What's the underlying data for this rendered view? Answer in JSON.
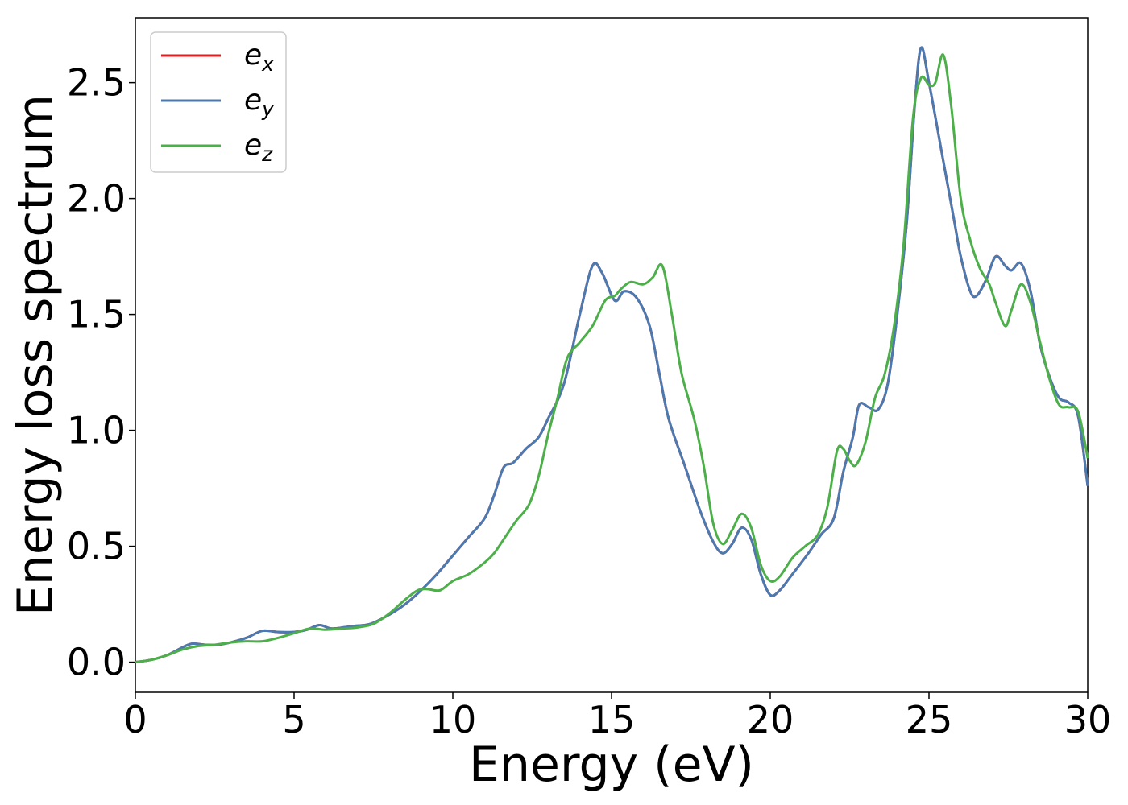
{
  "chart_data": {
    "type": "line",
    "title": "",
    "xlabel": "Energy (eV)",
    "ylabel": "Energy loss spectrum",
    "xlim": [
      0,
      30
    ],
    "ylim": [
      -0.13,
      2.78
    ],
    "xticks": [
      0,
      5,
      10,
      15,
      20,
      25,
      30
    ],
    "xtick_labels": [
      "0",
      "5",
      "10",
      "15",
      "20",
      "25",
      "30"
    ],
    "yticks": [
      0.0,
      0.5,
      1.0,
      1.5,
      2.0,
      2.5
    ],
    "ytick_labels": [
      "0.0",
      "0.5",
      "1.0",
      "1.5",
      "2.0",
      "2.5"
    ],
    "grid": false,
    "legend_position": "top-left",
    "series": [
      {
        "name": "e_x",
        "legend_base": "e",
        "legend_sub": "x",
        "color": "#e41a1c",
        "points": [
          [
            0,
            0
          ],
          [
            0.5,
            0.01
          ],
          [
            1.0,
            0.03
          ],
          [
            1.5,
            0.065
          ],
          [
            1.8,
            0.08
          ],
          [
            2.2,
            0.075
          ],
          [
            2.6,
            0.075
          ],
          [
            3.0,
            0.085
          ],
          [
            3.5,
            0.105
          ],
          [
            4.0,
            0.135
          ],
          [
            4.5,
            0.13
          ],
          [
            5.0,
            0.13
          ],
          [
            5.4,
            0.14
          ],
          [
            5.8,
            0.16
          ],
          [
            6.2,
            0.145
          ],
          [
            6.8,
            0.155
          ],
          [
            7.4,
            0.165
          ],
          [
            8.0,
            0.205
          ],
          [
            8.5,
            0.25
          ],
          [
            9.0,
            0.31
          ],
          [
            9.5,
            0.38
          ],
          [
            10.0,
            0.46
          ],
          [
            10.5,
            0.54
          ],
          [
            11.0,
            0.62
          ],
          [
            11.3,
            0.72
          ],
          [
            11.6,
            0.84
          ],
          [
            11.9,
            0.86
          ],
          [
            12.3,
            0.92
          ],
          [
            12.7,
            0.97
          ],
          [
            13.0,
            1.05
          ],
          [
            13.5,
            1.2
          ],
          [
            14.0,
            1.5
          ],
          [
            14.4,
            1.71
          ],
          [
            14.7,
            1.68
          ],
          [
            15.1,
            1.56
          ],
          [
            15.4,
            1.6
          ],
          [
            15.8,
            1.57
          ],
          [
            16.2,
            1.45
          ],
          [
            16.5,
            1.25
          ],
          [
            16.8,
            1.05
          ],
          [
            17.3,
            0.85
          ],
          [
            17.8,
            0.65
          ],
          [
            18.2,
            0.52
          ],
          [
            18.5,
            0.47
          ],
          [
            18.8,
            0.51
          ],
          [
            19.1,
            0.58
          ],
          [
            19.4,
            0.53
          ],
          [
            19.7,
            0.38
          ],
          [
            20.0,
            0.29
          ],
          [
            20.3,
            0.31
          ],
          [
            20.7,
            0.38
          ],
          [
            21.2,
            0.47
          ],
          [
            21.6,
            0.55
          ],
          [
            22.0,
            0.62
          ],
          [
            22.3,
            0.82
          ],
          [
            22.6,
            0.97
          ],
          [
            22.8,
            1.11
          ],
          [
            23.1,
            1.1
          ],
          [
            23.4,
            1.09
          ],
          [
            23.7,
            1.2
          ],
          [
            24.0,
            1.5
          ],
          [
            24.3,
            1.9
          ],
          [
            24.55,
            2.4
          ],
          [
            24.75,
            2.65
          ],
          [
            25.0,
            2.5
          ],
          [
            25.4,
            2.2
          ],
          [
            25.8,
            1.9
          ],
          [
            26.0,
            1.75
          ],
          [
            26.3,
            1.6
          ],
          [
            26.5,
            1.58
          ],
          [
            26.8,
            1.65
          ],
          [
            27.1,
            1.75
          ],
          [
            27.4,
            1.71
          ],
          [
            27.6,
            1.69
          ],
          [
            27.9,
            1.72
          ],
          [
            28.2,
            1.6
          ],
          [
            28.5,
            1.37
          ],
          [
            28.8,
            1.23
          ],
          [
            29.1,
            1.14
          ],
          [
            29.4,
            1.12
          ],
          [
            29.7,
            1.06
          ],
          [
            30.0,
            0.76
          ]
        ]
      },
      {
        "name": "e_y",
        "legend_base": "e",
        "legend_sub": "y",
        "color": "#4a7ab0",
        "points": [
          [
            0,
            0
          ],
          [
            0.5,
            0.01
          ],
          [
            1.0,
            0.03
          ],
          [
            1.5,
            0.065
          ],
          [
            1.8,
            0.08
          ],
          [
            2.2,
            0.075
          ],
          [
            2.6,
            0.075
          ],
          [
            3.0,
            0.085
          ],
          [
            3.5,
            0.105
          ],
          [
            4.0,
            0.135
          ],
          [
            4.5,
            0.13
          ],
          [
            5.0,
            0.13
          ],
          [
            5.4,
            0.14
          ],
          [
            5.8,
            0.16
          ],
          [
            6.2,
            0.145
          ],
          [
            6.8,
            0.155
          ],
          [
            7.4,
            0.165
          ],
          [
            8.0,
            0.205
          ],
          [
            8.5,
            0.25
          ],
          [
            9.0,
            0.31
          ],
          [
            9.5,
            0.38
          ],
          [
            10.0,
            0.46
          ],
          [
            10.5,
            0.54
          ],
          [
            11.0,
            0.62
          ],
          [
            11.3,
            0.72
          ],
          [
            11.6,
            0.84
          ],
          [
            11.9,
            0.86
          ],
          [
            12.3,
            0.92
          ],
          [
            12.7,
            0.97
          ],
          [
            13.0,
            1.05
          ],
          [
            13.5,
            1.2
          ],
          [
            14.0,
            1.5
          ],
          [
            14.4,
            1.71
          ],
          [
            14.7,
            1.68
          ],
          [
            15.1,
            1.56
          ],
          [
            15.4,
            1.6
          ],
          [
            15.8,
            1.57
          ],
          [
            16.2,
            1.45
          ],
          [
            16.5,
            1.25
          ],
          [
            16.8,
            1.05
          ],
          [
            17.3,
            0.85
          ],
          [
            17.8,
            0.65
          ],
          [
            18.2,
            0.52
          ],
          [
            18.5,
            0.47
          ],
          [
            18.8,
            0.51
          ],
          [
            19.1,
            0.58
          ],
          [
            19.4,
            0.53
          ],
          [
            19.7,
            0.38
          ],
          [
            20.0,
            0.29
          ],
          [
            20.3,
            0.31
          ],
          [
            20.7,
            0.38
          ],
          [
            21.2,
            0.47
          ],
          [
            21.6,
            0.55
          ],
          [
            22.0,
            0.62
          ],
          [
            22.3,
            0.82
          ],
          [
            22.6,
            0.97
          ],
          [
            22.8,
            1.11
          ],
          [
            23.1,
            1.1
          ],
          [
            23.4,
            1.09
          ],
          [
            23.7,
            1.2
          ],
          [
            24.0,
            1.5
          ],
          [
            24.3,
            1.9
          ],
          [
            24.55,
            2.4
          ],
          [
            24.75,
            2.65
          ],
          [
            25.0,
            2.5
          ],
          [
            25.4,
            2.2
          ],
          [
            25.8,
            1.9
          ],
          [
            26.0,
            1.75
          ],
          [
            26.3,
            1.6
          ],
          [
            26.5,
            1.58
          ],
          [
            26.8,
            1.65
          ],
          [
            27.1,
            1.75
          ],
          [
            27.4,
            1.71
          ],
          [
            27.6,
            1.69
          ],
          [
            27.9,
            1.72
          ],
          [
            28.2,
            1.6
          ],
          [
            28.5,
            1.37
          ],
          [
            28.8,
            1.23
          ],
          [
            29.1,
            1.14
          ],
          [
            29.4,
            1.12
          ],
          [
            29.7,
            1.06
          ],
          [
            30.0,
            0.76
          ]
        ]
      },
      {
        "name": "e_z",
        "legend_base": "e",
        "legend_sub": "z",
        "color": "#4daf4a",
        "points": [
          [
            0,
            0
          ],
          [
            0.5,
            0.01
          ],
          [
            1.0,
            0.03
          ],
          [
            1.5,
            0.055
          ],
          [
            2.0,
            0.07
          ],
          [
            2.5,
            0.075
          ],
          [
            3.0,
            0.085
          ],
          [
            3.5,
            0.09
          ],
          [
            4.0,
            0.09
          ],
          [
            4.5,
            0.105
          ],
          [
            5.0,
            0.125
          ],
          [
            5.5,
            0.145
          ],
          [
            6.0,
            0.14
          ],
          [
            6.5,
            0.145
          ],
          [
            7.0,
            0.15
          ],
          [
            7.5,
            0.165
          ],
          [
            8.0,
            0.21
          ],
          [
            8.5,
            0.27
          ],
          [
            8.9,
            0.31
          ],
          [
            9.2,
            0.315
          ],
          [
            9.6,
            0.31
          ],
          [
            10.0,
            0.35
          ],
          [
            10.5,
            0.38
          ],
          [
            11.0,
            0.43
          ],
          [
            11.3,
            0.47
          ],
          [
            11.7,
            0.55
          ],
          [
            12.0,
            0.61
          ],
          [
            12.4,
            0.68
          ],
          [
            12.7,
            0.8
          ],
          [
            13.0,
            0.98
          ],
          [
            13.3,
            1.14
          ],
          [
            13.6,
            1.31
          ],
          [
            14.0,
            1.38
          ],
          [
            14.4,
            1.45
          ],
          [
            14.8,
            1.56
          ],
          [
            15.1,
            1.58
          ],
          [
            15.3,
            1.61
          ],
          [
            15.6,
            1.64
          ],
          [
            16.0,
            1.63
          ],
          [
            16.3,
            1.66
          ],
          [
            16.6,
            1.71
          ],
          [
            16.9,
            1.5
          ],
          [
            17.2,
            1.25
          ],
          [
            17.6,
            1.05
          ],
          [
            17.9,
            0.85
          ],
          [
            18.2,
            0.6
          ],
          [
            18.5,
            0.51
          ],
          [
            18.8,
            0.57
          ],
          [
            19.1,
            0.64
          ],
          [
            19.4,
            0.58
          ],
          [
            19.7,
            0.42
          ],
          [
            20.0,
            0.35
          ],
          [
            20.3,
            0.37
          ],
          [
            20.7,
            0.45
          ],
          [
            21.1,
            0.5
          ],
          [
            21.5,
            0.55
          ],
          [
            21.8,
            0.67
          ],
          [
            22.1,
            0.91
          ],
          [
            22.3,
            0.92
          ],
          [
            22.5,
            0.87
          ],
          [
            22.7,
            0.85
          ],
          [
            23.0,
            0.95
          ],
          [
            23.3,
            1.14
          ],
          [
            23.6,
            1.24
          ],
          [
            23.9,
            1.45
          ],
          [
            24.2,
            1.8
          ],
          [
            24.5,
            2.35
          ],
          [
            24.75,
            2.52
          ],
          [
            25.0,
            2.49
          ],
          [
            25.2,
            2.5
          ],
          [
            25.45,
            2.62
          ],
          [
            25.7,
            2.4
          ],
          [
            26.0,
            2.0
          ],
          [
            26.3,
            1.82
          ],
          [
            26.6,
            1.7
          ],
          [
            26.9,
            1.63
          ],
          [
            27.1,
            1.55
          ],
          [
            27.4,
            1.45
          ],
          [
            27.6,
            1.52
          ],
          [
            27.9,
            1.63
          ],
          [
            28.2,
            1.55
          ],
          [
            28.5,
            1.38
          ],
          [
            28.8,
            1.22
          ],
          [
            29.1,
            1.11
          ],
          [
            29.4,
            1.1
          ],
          [
            29.7,
            1.08
          ],
          [
            30.0,
            0.88
          ]
        ]
      }
    ]
  }
}
